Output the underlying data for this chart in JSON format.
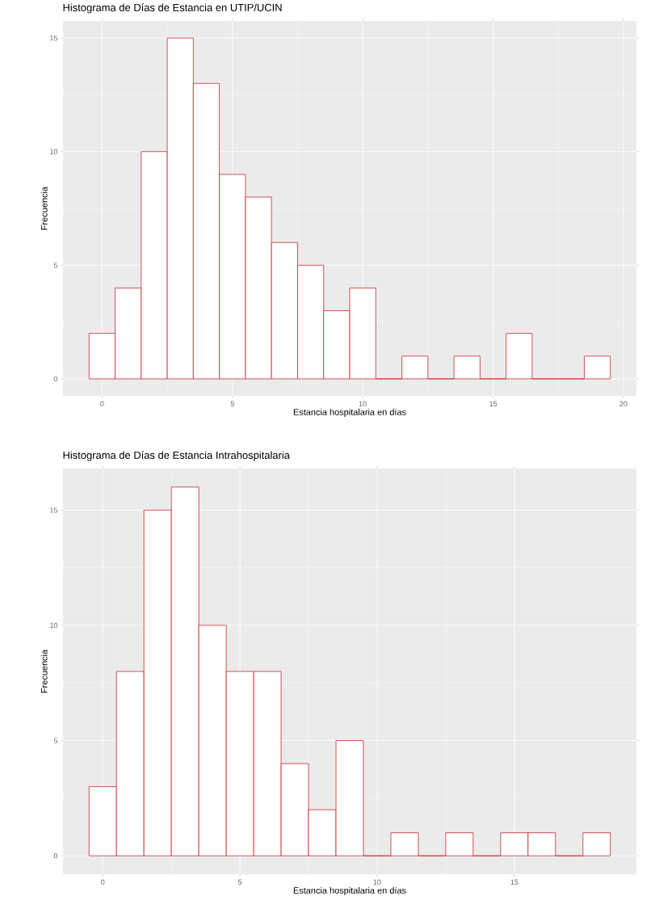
{
  "chart_data": [
    {
      "type": "histogram",
      "title": "Histograma de Días de Estancia en UTIP/UCIN",
      "xlabel": "Estancia hospitalaria en días",
      "ylabel": "Frecuencia",
      "color": "#c82828",
      "grid": true,
      "bins": [
        -0.5,
        0.5,
        1.5,
        2.5,
        3.5,
        4.5,
        5.5,
        6.5,
        7.5,
        8.5,
        9.5,
        10.5,
        11.5,
        12.5,
        13.5,
        14.5,
        15.5,
        16.5,
        17.5,
        18.5,
        19.5
      ],
      "values": [
        2,
        4,
        10,
        15,
        13,
        9,
        8,
        6,
        5,
        3,
        4,
        0,
        1,
        0,
        1,
        0,
        2,
        0,
        0,
        1
      ],
      "xlim": [
        -1.5,
        20.5
      ],
      "xticks": [
        0,
        5,
        10,
        15,
        20
      ],
      "ylim": [
        -0.75,
        15.75
      ],
      "yticks": [
        0,
        5,
        10,
        15
      ]
    },
    {
      "type": "histogram",
      "title": "Histograma de Días de Estancia Intrahospitalaria",
      "xlabel": "Estancia hospitalaria en días",
      "ylabel": "Frecuencia",
      "color": "#c82828",
      "grid": true,
      "bins": [
        -0.5,
        0.5,
        1.5,
        2.5,
        3.5,
        4.5,
        5.5,
        6.5,
        7.5,
        8.5,
        9.5,
        10.5,
        11.5,
        12.5,
        13.5,
        14.5,
        15.5,
        16.5,
        17.5,
        18.5
      ],
      "values": [
        3,
        8,
        15,
        16,
        10,
        8,
        8,
        4,
        2,
        5,
        0,
        1,
        0,
        1,
        0,
        1,
        1,
        0,
        1
      ],
      "xlim": [
        -1.45,
        19.45
      ],
      "xticks": [
        0,
        5,
        10,
        15
      ],
      "ylim": [
        -0.8,
        16.8
      ],
      "yticks": [
        0,
        5,
        10,
        15
      ]
    }
  ]
}
